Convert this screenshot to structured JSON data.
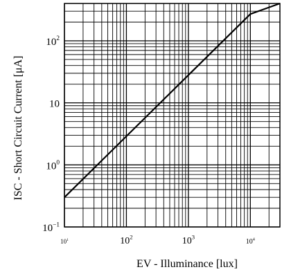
{
  "chart_data": {
    "type": "line",
    "xlabel": "EV - Illuminance [lux]",
    "ylabel": "ISC - Short Circuit Current [μA]",
    "xscale": "log",
    "yscale": "log",
    "xlim": [
      10,
      30000
    ],
    "ylim": [
      0.1,
      400
    ],
    "grid": true,
    "x_ticks": [
      {
        "value": 10,
        "base": "10",
        "exp": "1"
      },
      {
        "value": 100,
        "base": "10",
        "exp": "2"
      },
      {
        "value": 1000,
        "base": "10",
        "exp": "3"
      },
      {
        "value": 10000,
        "base": "10",
        "exp": "4"
      }
    ],
    "y_ticks": [
      {
        "value": 0.1,
        "base": "10",
        "exp": "−1"
      },
      {
        "value": 1,
        "base": "10",
        "exp": "0"
      },
      {
        "value": 10,
        "base": "10",
        "exp": ""
      },
      {
        "value": 100,
        "base": "10",
        "exp": "2"
      }
    ],
    "series": [
      {
        "x": [
          10,
          100,
          1000,
          10000,
          30000
        ],
        "y": [
          0.3,
          2.9,
          28,
          270,
          400
        ],
        "color": "#000000"
      }
    ]
  }
}
